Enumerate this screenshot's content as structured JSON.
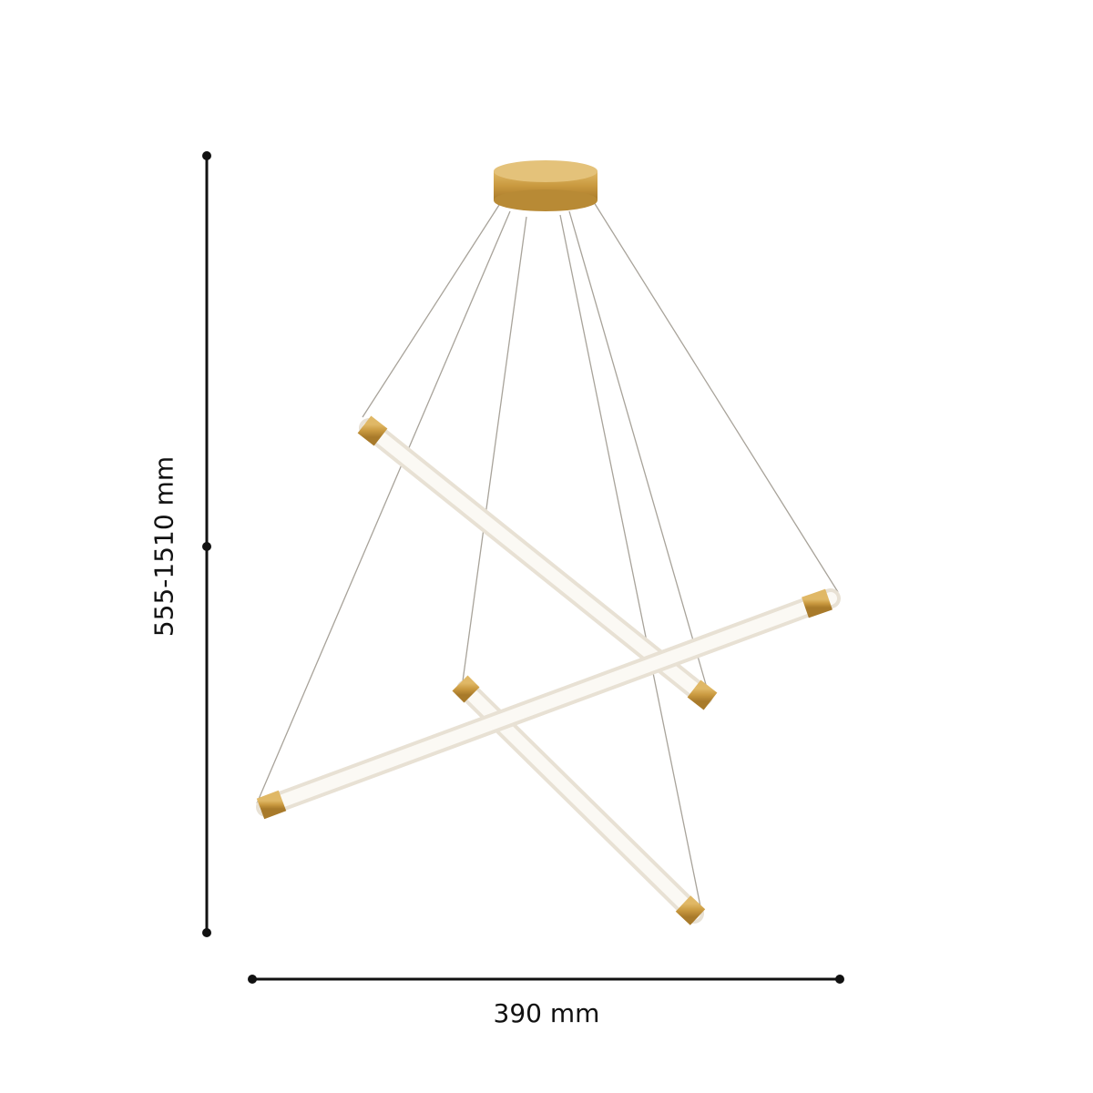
{
  "dimensions": {
    "height_label": "555-1510 mm",
    "width_label": "390 mm"
  },
  "colors": {
    "brass": "#c9993f",
    "tube": "#f4efe6",
    "wire": "#a8a39a",
    "dimension_line": "#111111"
  }
}
